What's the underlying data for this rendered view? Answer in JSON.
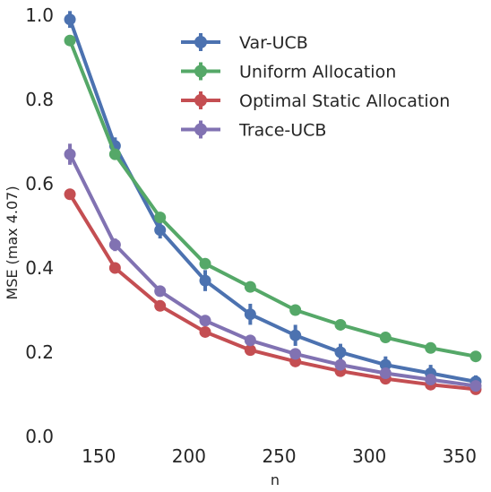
{
  "chart_data": {
    "type": "line",
    "xlabel": "n",
    "ylabel": "MSE (max 4.07)",
    "xlim": [
      130,
      362
    ],
    "ylim": [
      0.0,
      1.0
    ],
    "xticks": [
      "150",
      "200",
      "250",
      "300",
      "350"
    ],
    "yticks": [
      "0.0",
      "0.2",
      "0.4",
      "0.6",
      "0.8",
      "1.0"
    ],
    "grid": false,
    "legend_position": "top-right",
    "x": [
      134,
      159,
      184,
      209,
      234,
      259,
      284,
      309,
      334,
      359
    ],
    "series": [
      {
        "name": "Var-UCB",
        "color": "#4c72b0",
        "values": [
          0.99,
          0.69,
          0.49,
          0.37,
          0.29,
          0.24,
          0.2,
          0.17,
          0.15,
          0.13
        ],
        "errors": [
          0.02,
          0.02,
          0.02,
          0.025,
          0.025,
          0.025,
          0.02,
          0.02,
          0.02,
          0.015
        ]
      },
      {
        "name": "Uniform Allocation",
        "color": "#55a868",
        "values": [
          0.94,
          0.67,
          0.52,
          0.41,
          0.355,
          0.3,
          0.265,
          0.235,
          0.21,
          0.19
        ],
        "errors": [
          0.008,
          0.008,
          0.006,
          0.006,
          0.005,
          0.005,
          0.004,
          0.004,
          0.004,
          0.003
        ]
      },
      {
        "name": "Optimal Static Allocation",
        "color": "#c44e52",
        "values": [
          0.575,
          0.4,
          0.31,
          0.248,
          0.205,
          0.178,
          0.155,
          0.137,
          0.123,
          0.112
        ],
        "errors": [
          0.006,
          0.005,
          0.004,
          0.004,
          0.003,
          0.003,
          0.003,
          0.003,
          0.003,
          0.003
        ]
      },
      {
        "name": "Trace-UCB",
        "color": "#8172b2",
        "values": [
          0.67,
          0.455,
          0.345,
          0.275,
          0.228,
          0.196,
          0.17,
          0.15,
          0.135,
          0.12
        ],
        "errors": [
          0.025,
          0.015,
          0.01,
          0.008,
          0.006,
          0.005,
          0.005,
          0.004,
          0.004,
          0.004
        ]
      }
    ]
  }
}
